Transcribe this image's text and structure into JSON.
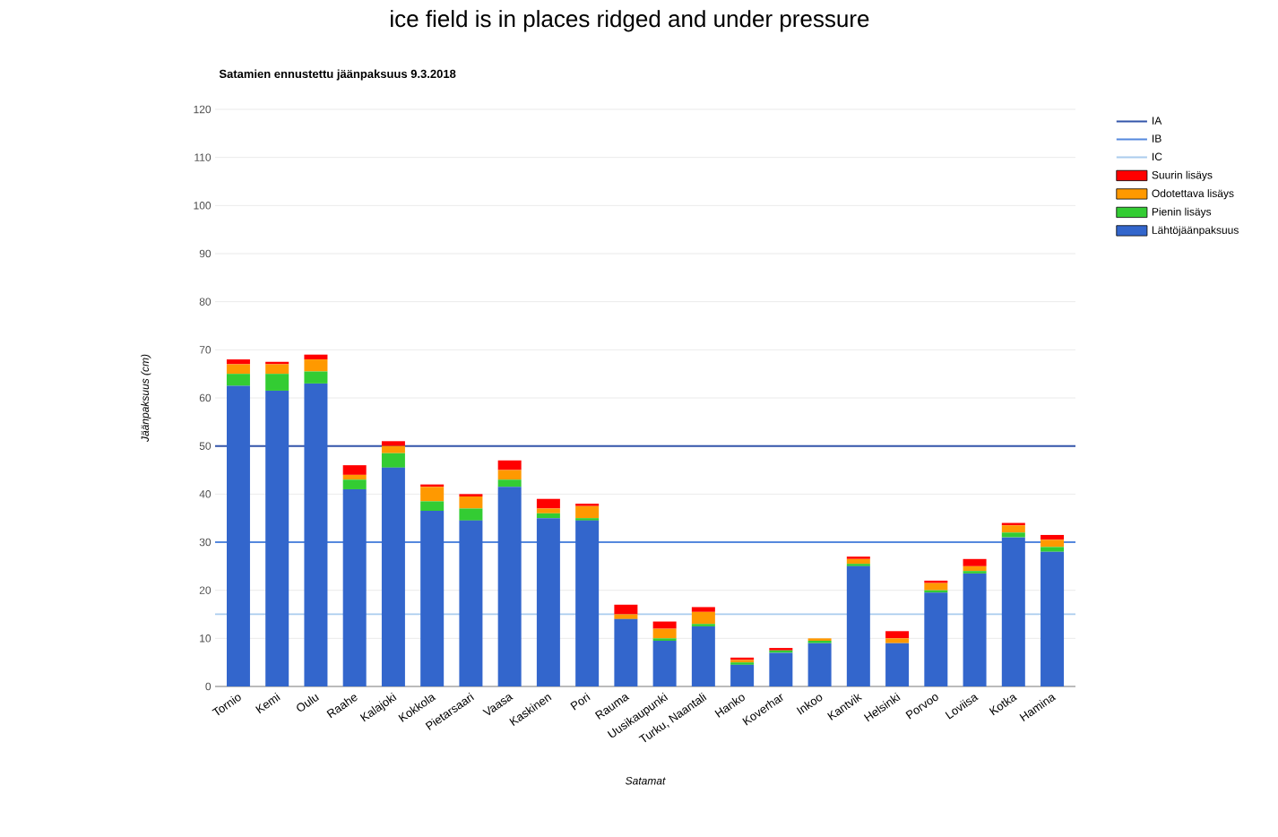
{
  "chart_data": {
    "type": "bar",
    "title": "Satamien ennustettu jäänpaksuus 9.3.2018",
    "xlabel": "Satamat",
    "ylabel": "Jäänpaksuus (cm)",
    "annotations": [
      "ice field is in places ridged and under pressure"
    ],
    "categories": [
      "Tornio",
      "Kemi",
      "Oulu",
      "Raahe",
      "Kalajoki",
      "Kokkola",
      "Pietarsaari",
      "Vaasa",
      "Kaskinen",
      "Pori",
      "Rauma",
      "Uusikaupunki",
      "Turku, Naantali",
      "Hanko",
      "Koverhar",
      "Inkoo",
      "Kantvik",
      "Helsinki",
      "Porvoo",
      "Loviisa",
      "Kotka",
      "Hamina"
    ],
    "stacked": true,
    "series": [
      {
        "name": "Lähtöjäänpaksuus",
        "color": "#3366cc",
        "values": [
          62.5,
          61.5,
          63,
          41,
          45.5,
          36.5,
          34.5,
          41.5,
          35,
          34.5,
          14,
          9.5,
          12.5,
          4.5,
          7,
          9,
          25,
          9,
          19.5,
          23.5,
          31,
          28
        ]
      },
      {
        "name": "Pienin lisäys",
        "color": "#33cc33",
        "values": [
          2.5,
          3.5,
          2.5,
          2,
          3,
          2,
          2.5,
          1.5,
          1,
          0.5,
          0,
          0.5,
          0.5,
          0.5,
          0.5,
          0.5,
          0.5,
          0,
          0.5,
          0.5,
          1,
          1
        ]
      },
      {
        "name": "Odotettava lisäys",
        "color": "#ff9900",
        "values": [
          2,
          2,
          2.5,
          1,
          1.5,
          3,
          2.5,
          2,
          1,
          2.5,
          1,
          2,
          2.5,
          0.5,
          0,
          0.5,
          1,
          1,
          1.5,
          1,
          1.5,
          1.5
        ]
      },
      {
        "name": "Suurin lisäys",
        "color": "#ff0000",
        "values": [
          1,
          0.5,
          1,
          2,
          1,
          0.5,
          0.5,
          2,
          2,
          0.5,
          2,
          1.5,
          1,
          0.5,
          0.5,
          0,
          0.5,
          1.5,
          0.5,
          1.5,
          0.5,
          1
        ]
      }
    ],
    "ref_lines": [
      {
        "axis": "y",
        "value": 50,
        "label": "IA",
        "color": "#3355aa"
      },
      {
        "axis": "y",
        "value": 30,
        "label": "IB",
        "color": "#5588dd"
      },
      {
        "axis": "y",
        "value": 15,
        "label": "IC",
        "color": "#aaccee"
      }
    ],
    "ylim": [
      0,
      120
    ],
    "yticks": [
      0,
      10,
      20,
      30,
      40,
      50,
      60,
      70,
      80,
      90,
      100,
      110,
      120
    ],
    "grid": "y",
    "legend": "right"
  }
}
